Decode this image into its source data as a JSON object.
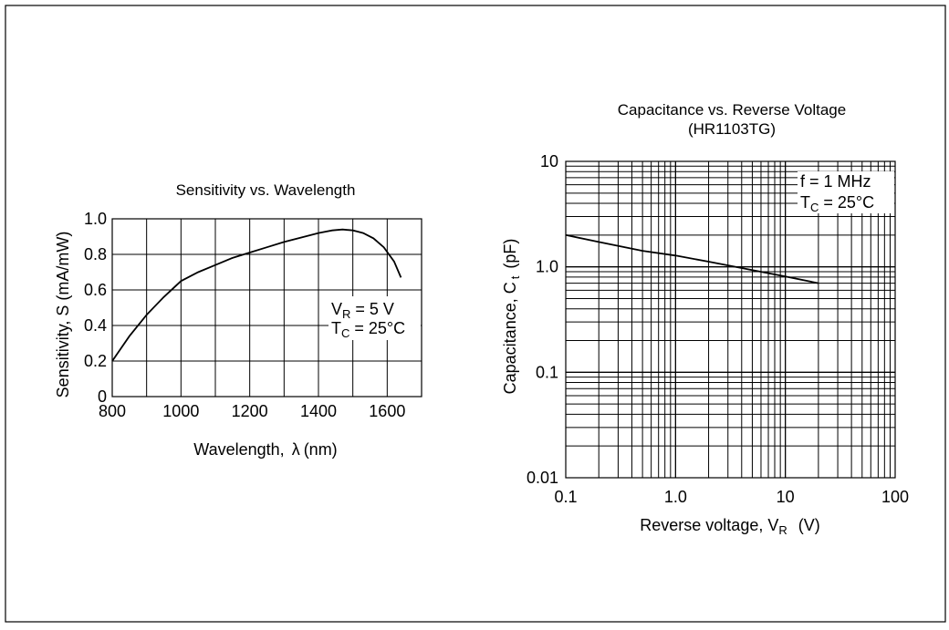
{
  "chart_data": [
    {
      "type": "line",
      "title": "Sensitivity vs. Wavelength",
      "xlabel": "Wavelength,",
      "xlabel_symbol": "λ",
      "xlabel_unit": "(nm)",
      "ylabel": "Sensitivity, S (mA/mW)",
      "xlim": [
        800,
        1700
      ],
      "ylim": [
        0,
        1.0
      ],
      "x_ticks": [
        800,
        1000,
        1200,
        1400,
        1600
      ],
      "x_tick_labels": [
        "800",
        "1000",
        "1200",
        "1400",
        "1600"
      ],
      "y_ticks": [
        0,
        0.2,
        0.4,
        0.6,
        0.8,
        1.0
      ],
      "y_tick_labels": [
        "0",
        "0.2",
        "0.4",
        "0.6",
        "0.8",
        "1.0"
      ],
      "grid": true,
      "annotations": [
        {
          "main": "V",
          "sub": "R",
          "rest": " = 5 V"
        },
        {
          "main": "T",
          "sub": "C",
          "rest": " = 25°C"
        }
      ],
      "series": [
        {
          "x": [
            800,
            850,
            900,
            950,
            1000,
            1050,
            1100,
            1150,
            1200,
            1250,
            1300,
            1350,
            1400,
            1440,
            1470,
            1500,
            1530,
            1560,
            1590,
            1620,
            1640
          ],
          "y": [
            0.2,
            0.34,
            0.46,
            0.56,
            0.65,
            0.7,
            0.74,
            0.78,
            0.81,
            0.84,
            0.87,
            0.895,
            0.92,
            0.935,
            0.94,
            0.935,
            0.92,
            0.89,
            0.84,
            0.76,
            0.67
          ]
        }
      ]
    },
    {
      "type": "line",
      "title": "Capacitance vs. Reverse Voltage",
      "subtitle": "(HR1103TG)",
      "xlabel": "Reverse voltage, V",
      "xlabel_sub": "R",
      "xlabel_unit": "(V)",
      "ylabel": "Capacitance, C",
      "ylabel_sub": "t",
      "ylabel_unit": "(pF)",
      "x_scale": "log",
      "y_scale": "log",
      "xlim": [
        0.1,
        100
      ],
      "ylim": [
        0.01,
        10
      ],
      "x_tick_labels": [
        "0.1",
        "1.0",
        "10",
        "100"
      ],
      "y_tick_labels": [
        "0.01",
        "0.1",
        "1.0",
        "10"
      ],
      "grid": true,
      "annotations": [
        {
          "main": "f = 1 MHz",
          "sub": "",
          "rest": ""
        },
        {
          "main": "T",
          "sub": "C",
          "rest": " = 25°C"
        }
      ],
      "series": [
        {
          "x": [
            0.1,
            0.2,
            0.5,
            1.0,
            2.0,
            5.0,
            10,
            20
          ],
          "y": [
            2.0,
            1.72,
            1.42,
            1.28,
            1.12,
            0.93,
            0.81,
            0.7
          ]
        }
      ]
    }
  ]
}
